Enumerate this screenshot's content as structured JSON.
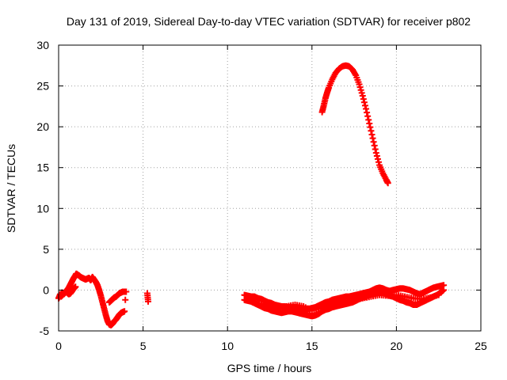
{
  "chart_data": {
    "type": "scatter",
    "title": "Day 131 of 2019, Sidereal Day-to-day VTEC variation (SDTVAR) for receiver p802",
    "xlabel": "GPS time / hours",
    "ylabel": "SDTVAR / TECUs",
    "xlim": [
      0,
      25
    ],
    "ylim": [
      -5,
      30
    ],
    "x_ticks": [
      0,
      5,
      10,
      15,
      20,
      25
    ],
    "y_ticks": [
      -5,
      0,
      5,
      10,
      15,
      20,
      25,
      30
    ],
    "grid": true,
    "marker": "+",
    "series": [
      {
        "name": "SDTVAR",
        "color": "#ff0000",
        "segments": [
          {
            "x": [
              0.0,
              0.05,
              0.1,
              0.15,
              0.2,
              0.3,
              0.4,
              0.5,
              0.6,
              0.7,
              0.8,
              0.9,
              1.0,
              1.05,
              1.1,
              1.2,
              1.3,
              1.4,
              1.5,
              1.6,
              1.7,
              1.8,
              1.9,
              2.0,
              2.1,
              2.2,
              2.3,
              2.4,
              2.5,
              2.6,
              2.7,
              2.8,
              2.9,
              3.0,
              3.1,
              3.2,
              3.3,
              3.4,
              3.5,
              3.6,
              3.7,
              3.8,
              3.9
            ],
            "y": [
              -1.0,
              -0.8,
              -0.5,
              -0.8,
              -0.3,
              -0.5,
              -0.3,
              0.0,
              0.3,
              0.7,
              1.1,
              1.5,
              1.8,
              2.0,
              1.9,
              1.8,
              1.6,
              1.5,
              1.4,
              1.3,
              1.4,
              1.5,
              1.2,
              1.6,
              1.3,
              1.0,
              0.6,
              0.0,
              -0.7,
              -1.5,
              -2.3,
              -3.1,
              -3.8,
              -4.2,
              -4.3,
              -4.1,
              -3.8,
              -3.6,
              -3.3,
              -3.0,
              -2.8,
              -2.7,
              -2.6
            ]
          },
          {
            "x": [
              0.2,
              0.3,
              0.4,
              0.5,
              0.6,
              0.7,
              0.8,
              0.9,
              1.0
            ],
            "y": [
              -0.7,
              -0.4,
              -0.2,
              -0.3,
              -0.5,
              -0.4,
              -0.1,
              0.2,
              0.4
            ]
          },
          {
            "x": [
              3.0,
              3.1,
              3.2,
              3.3,
              3.4,
              3.5,
              3.6,
              3.7,
              3.8,
              3.9,
              4.0
            ],
            "y": [
              -1.5,
              -1.3,
              -1.1,
              -0.9,
              -0.8,
              -0.6,
              -0.4,
              -0.3,
              -0.2,
              -0.2,
              -0.2
            ]
          },
          {
            "x": [
              3.95
            ],
            "y": [
              -1.2
            ]
          },
          {
            "x": [
              5.25,
              5.3
            ],
            "y": [
              -0.4,
              -1.4
            ]
          },
          {
            "x": [
              11.0,
              11.2,
              11.4,
              11.6,
              11.8,
              12.0,
              12.2,
              12.4,
              12.6,
              12.8,
              13.0,
              13.2,
              13.4,
              13.6,
              13.8,
              14.0,
              14.2,
              14.4,
              14.6,
              14.8,
              15.0,
              15.2,
              15.4,
              15.6,
              15.8,
              16.0,
              16.2,
              16.4,
              16.6,
              16.8,
              17.0,
              17.2,
              17.4,
              17.6,
              17.8,
              18.0,
              18.2,
              18.4,
              18.6,
              18.8,
              19.0,
              19.2,
              19.4,
              19.6,
              19.8,
              20.0,
              20.2,
              20.4,
              20.6,
              20.8,
              21.0,
              21.2,
              21.4,
              21.6,
              21.8,
              22.0,
              22.2,
              22.4,
              22.6,
              22.8
            ],
            "y": [
              -0.6,
              -0.7,
              -0.8,
              -0.8,
              -1.0,
              -1.1,
              -1.3,
              -1.5,
              -1.6,
              -1.8,
              -1.9,
              -2.0,
              -2.0,
              -2.1,
              -2.1,
              -2.2,
              -2.2,
              -2.3,
              -2.3,
              -2.3,
              -2.2,
              -2.1,
              -1.9,
              -1.7,
              -1.5,
              -1.4,
              -1.2,
              -1.1,
              -1.0,
              -0.9,
              -0.8,
              -0.8,
              -0.7,
              -0.6,
              -0.5,
              -0.4,
              -0.3,
              -0.2,
              0.0,
              0.2,
              0.3,
              0.2,
              0.0,
              -0.1,
              0.0,
              0.1,
              0.2,
              0.2,
              0.1,
              0.0,
              -0.2,
              -0.4,
              -0.5,
              -0.3,
              -0.1,
              0.1,
              0.3,
              0.4,
              0.5,
              0.6
            ]
          },
          {
            "x": [
              11.0,
              11.2,
              11.4,
              11.6,
              11.8,
              12.0,
              12.2,
              12.4,
              12.6,
              12.8,
              13.0,
              13.2,
              13.4,
              13.6,
              13.8,
              14.0,
              14.2,
              14.4,
              14.6,
              14.8,
              15.0,
              15.2,
              15.4,
              15.6,
              15.8,
              16.0,
              16.2,
              16.4,
              16.6,
              16.8,
              17.0,
              17.2,
              17.4,
              17.6,
              17.8,
              18.0,
              18.2,
              18.4,
              18.6,
              18.8,
              19.0,
              19.2,
              19.4,
              19.6,
              19.8,
              20.0,
              20.2,
              20.4,
              20.6,
              20.8,
              21.0,
              21.2,
              21.4,
              21.6,
              21.8,
              22.0,
              22.2,
              22.4,
              22.6,
              22.8
            ],
            "y": [
              -1.2,
              -1.3,
              -1.4,
              -1.6,
              -1.8,
              -2.0,
              -2.2,
              -2.3,
              -2.5,
              -2.6,
              -2.7,
              -2.8,
              -2.7,
              -2.6,
              -2.6,
              -2.7,
              -2.8,
              -2.9,
              -3.0,
              -3.1,
              -3.2,
              -3.1,
              -2.9,
              -2.6,
              -2.4,
              -2.3,
              -2.1,
              -2.0,
              -1.9,
              -1.8,
              -1.7,
              -1.6,
              -1.5,
              -1.3,
              -1.1,
              -0.9,
              -0.8,
              -0.6,
              -0.5,
              -0.3,
              -0.2,
              -0.3,
              -0.5,
              -0.7,
              -0.8,
              -1.0,
              -1.2,
              -1.3,
              -1.5,
              -1.6,
              -1.8,
              -1.8,
              -1.6,
              -1.4,
              -1.2,
              -1.0,
              -0.8,
              -0.6,
              -0.3,
              0.0
            ]
          },
          {
            "x": [
              11.5,
              12.0,
              12.5,
              13.0,
              13.5,
              14.0,
              14.5,
              15.0,
              15.5,
              16.0,
              16.5,
              17.0,
              17.5,
              18.0,
              18.5,
              19.0,
              19.5,
              20.0,
              20.5,
              21.0,
              21.5,
              22.0,
              22.5
            ],
            "y": [
              -1.5,
              -1.7,
              -1.9,
              -2.3,
              -2.0,
              -1.8,
              -2.0,
              -2.5,
              -2.2,
              -1.8,
              -1.5,
              -1.3,
              -1.2,
              -1.0,
              -0.8,
              -0.6,
              -0.7,
              -0.6,
              -0.8,
              -1.0,
              -1.1,
              -0.9,
              -0.6
            ]
          },
          {
            "x": [
              15.6,
              15.7,
              15.8,
              15.9,
              16.0,
              16.2,
              16.4,
              16.6,
              16.8,
              17.0,
              17.2,
              17.4,
              17.6,
              17.8,
              18.0,
              18.2,
              18.4,
              18.6,
              18.8,
              19.0,
              19.2,
              19.4,
              19.5
            ],
            "y": [
              21.8,
              22.6,
              23.5,
              24.2,
              24.8,
              25.8,
              26.6,
              27.1,
              27.4,
              27.5,
              27.4,
              27.0,
              26.3,
              25.2,
              23.8,
              22.2,
              20.4,
              18.6,
              16.8,
              15.3,
              14.3,
              13.5,
              13.1
            ]
          }
        ]
      }
    ]
  }
}
